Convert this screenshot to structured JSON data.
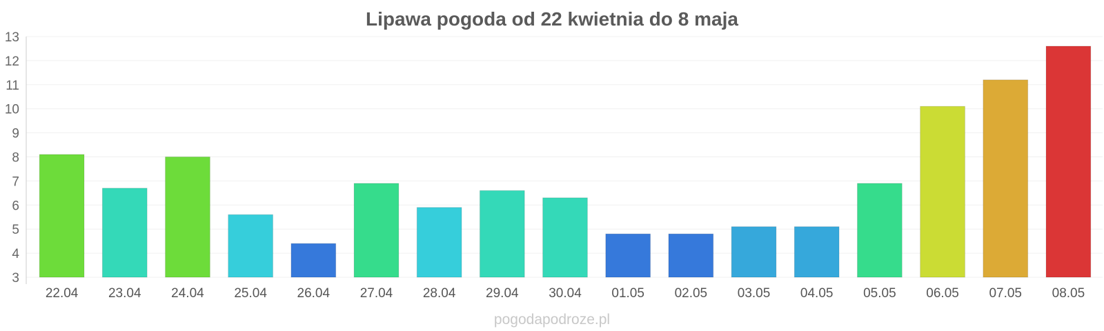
{
  "chart_data": {
    "type": "bar",
    "title": "Lipawa pogoda od 22 kwietnia do 8 maja",
    "xlabel": "",
    "ylabel": "",
    "ylim": [
      3,
      13
    ],
    "yticks": [
      "3",
      "4",
      "5",
      "6",
      "7",
      "8",
      "9",
      "10",
      "11",
      "12",
      "13"
    ],
    "grid": true,
    "categories": [
      "22.04",
      "23.04",
      "24.04",
      "25.04",
      "26.04",
      "27.04",
      "28.04",
      "29.04",
      "30.04",
      "01.05",
      "02.05",
      "03.05",
      "04.05",
      "05.05",
      "06.05",
      "07.05",
      "08.05"
    ],
    "values": [
      8.1,
      6.7,
      8.0,
      5.6,
      4.4,
      6.9,
      5.9,
      6.6,
      6.3,
      4.8,
      4.8,
      5.1,
      5.1,
      6.9,
      10.1,
      11.2,
      12.6
    ],
    "colors": [
      "#6ddc3a",
      "#34d9b8",
      "#6ddc3a",
      "#36cedb",
      "#3679db",
      "#36dc8c",
      "#36cedb",
      "#34d9b8",
      "#34d9b8",
      "#3679db",
      "#3679db",
      "#36a8db",
      "#36a8db",
      "#36dc8c",
      "#cbdc34",
      "#dcaa36",
      "#db3636"
    ]
  },
  "watermark": "pogodapodroze.pl"
}
